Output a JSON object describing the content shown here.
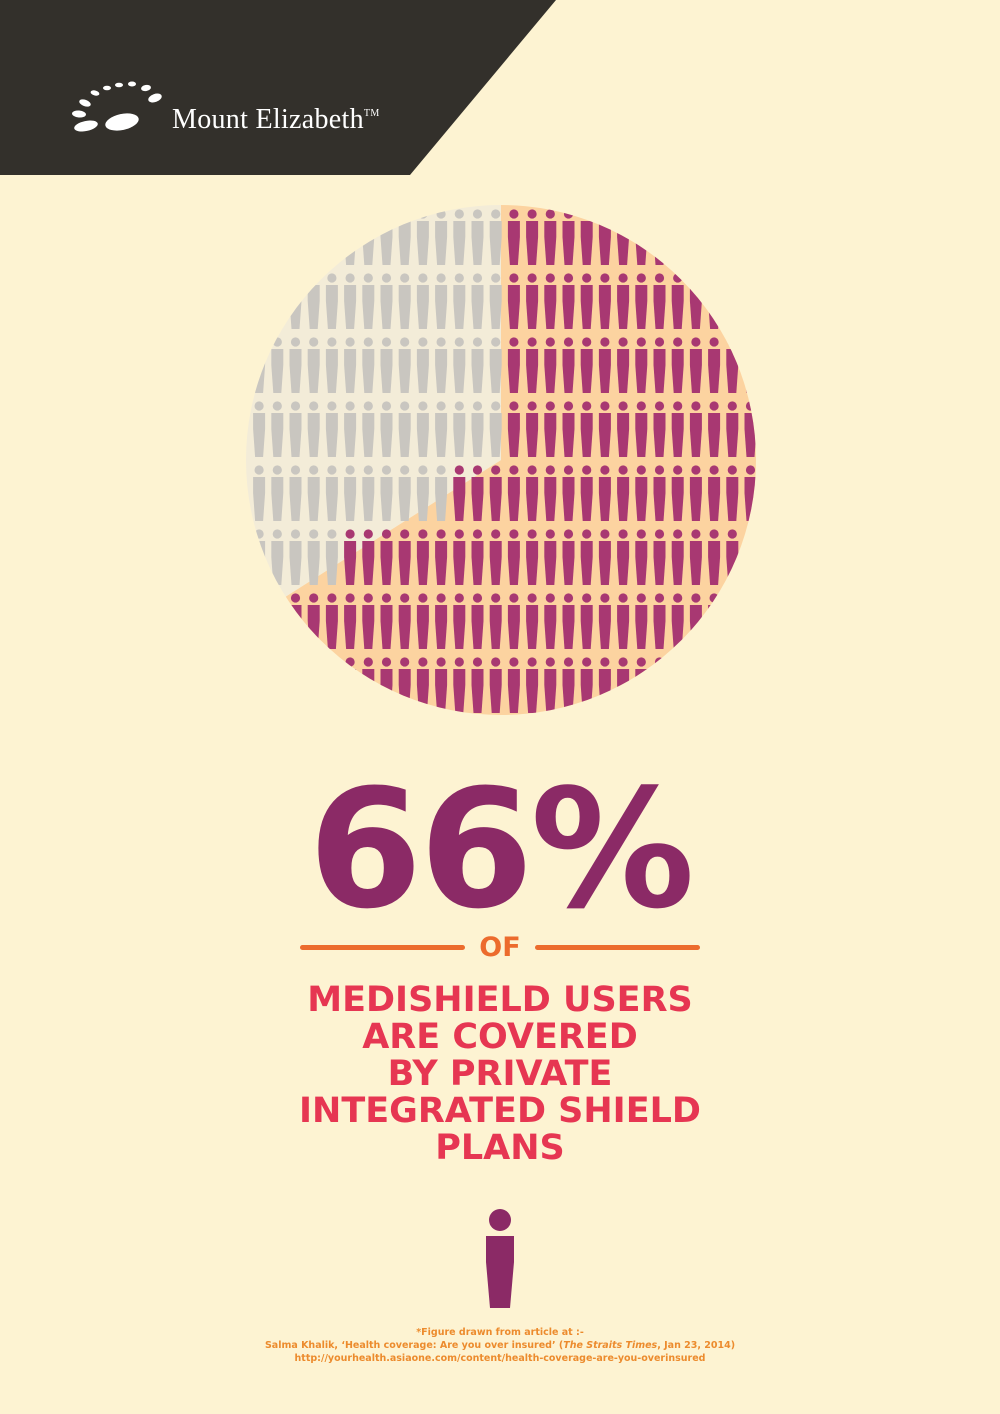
{
  "brand": {
    "name": "Mount Elizabeth",
    "trademark": "TM"
  },
  "chart_data": {
    "type": "pie",
    "slices": [
      {
        "label": "Covered by private Integrated Shield Plans",
        "value": 66,
        "color": "#a83872"
      },
      {
        "label": "Others",
        "value": 34,
        "color": "#c9c6c0"
      }
    ]
  },
  "headline": {
    "value": "66%",
    "connector": "OF"
  },
  "statement": {
    "lines": [
      "MEDISHIELD USERS",
      "ARE COVERED",
      "BY PRIVATE",
      "INTEGRATED SHIELD",
      "PLANS"
    ]
  },
  "footnote": {
    "line1": "*Figure drawn from article at :-",
    "line2_pre": "Salma Khalik, ‘Health coverage: Are you over insured’ (",
    "line2_italic": "The Straits Times",
    "line2_post": ", Jan 23, 2014)",
    "line3": "http://yourhealth.asiaone.com/content/health-coverage-are-you-overinsured"
  },
  "colors": {
    "background": "#fdf3d2",
    "header": "#33302b",
    "accent_purple": "#8b2a66",
    "figure_purple": "#a83872",
    "figure_grey": "#c9c6c0",
    "slice_peach": "#fcd3a0",
    "slice_cream": "#f3ecd8",
    "orange": "#ec6b2d",
    "red": "#e63652"
  }
}
